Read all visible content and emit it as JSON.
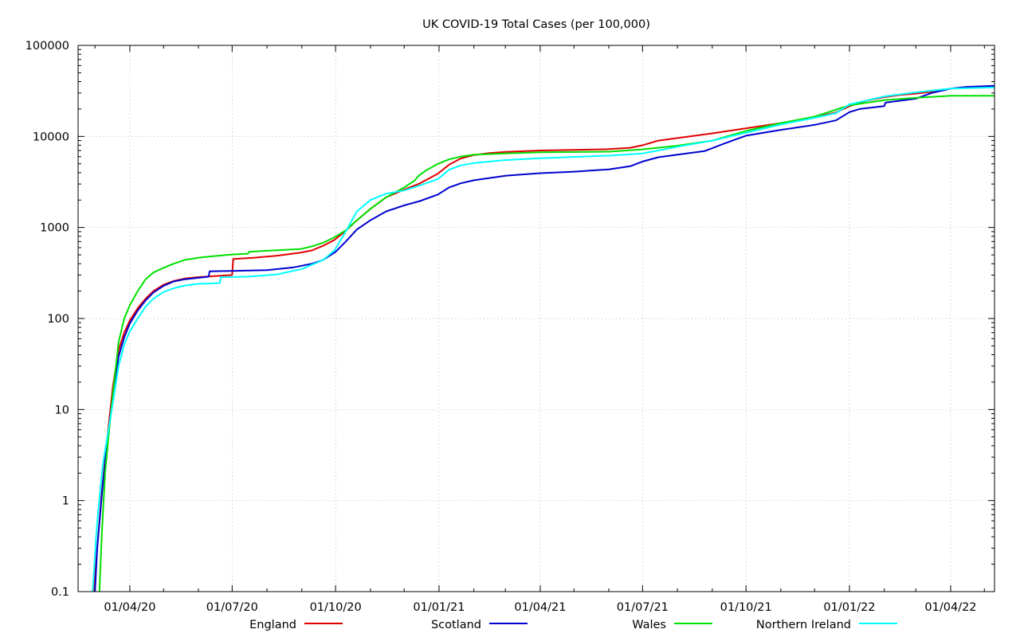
{
  "chart_data": {
    "type": "line",
    "title": "UK COVID-19 Total Cases (per 100,000)",
    "xlabel": "",
    "ylabel": "",
    "yscale": "log",
    "ylim": [
      0.1,
      100000
    ],
    "xlim": [
      "2020-02-15",
      "2022-05-10"
    ],
    "grid": true,
    "legend_position": "bottom",
    "y_ticks": [
      {
        "value": 0.1,
        "label": "0.1"
      },
      {
        "value": 1,
        "label": "1"
      },
      {
        "value": 10,
        "label": "10"
      },
      {
        "value": 100,
        "label": "100"
      },
      {
        "value": 1000,
        "label": "1000"
      },
      {
        "value": 10000,
        "label": "10000"
      },
      {
        "value": 100000,
        "label": "100000"
      }
    ],
    "x_ticks": [
      {
        "date": "2020-04-01",
        "label": "01/04/20"
      },
      {
        "date": "2020-07-01",
        "label": "01/07/20"
      },
      {
        "date": "2020-10-01",
        "label": "01/10/20"
      },
      {
        "date": "2021-01-01",
        "label": "01/01/21"
      },
      {
        "date": "2021-04-01",
        "label": "01/04/21"
      },
      {
        "date": "2021-07-01",
        "label": "01/07/21"
      },
      {
        "date": "2021-10-01",
        "label": "01/10/21"
      },
      {
        "date": "2022-01-01",
        "label": "01/01/22"
      },
      {
        "date": "2022-04-01",
        "label": "01/04/22"
      }
    ],
    "series": [
      {
        "name": "England",
        "color": "#e00000",
        "points": [
          [
            "2020-02-29",
            0.1
          ],
          [
            "2020-03-03",
            0.3
          ],
          [
            "2020-03-07",
            1.2
          ],
          [
            "2020-03-12",
            5
          ],
          [
            "2020-03-17",
            18
          ],
          [
            "2020-03-22",
            45
          ],
          [
            "2020-03-27",
            70
          ],
          [
            "2020-04-01",
            95
          ],
          [
            "2020-04-08",
            130
          ],
          [
            "2020-04-15",
            165
          ],
          [
            "2020-04-22",
            200
          ],
          [
            "2020-05-01",
            235
          ],
          [
            "2020-05-10",
            258
          ],
          [
            "2020-05-20",
            275
          ],
          [
            "2020-06-01",
            285
          ],
          [
            "2020-06-15",
            292
          ],
          [
            "2020-07-01",
            300
          ],
          [
            "2020-07-02",
            450
          ],
          [
            "2020-07-20",
            465
          ],
          [
            "2020-08-10",
            490
          ],
          [
            "2020-08-31",
            530
          ],
          [
            "2020-09-10",
            560
          ],
          [
            "2020-09-20",
            630
          ],
          [
            "2020-09-30",
            730
          ],
          [
            "2020-10-10",
            920
          ],
          [
            "2020-10-20",
            1200
          ],
          [
            "2020-11-01",
            1600
          ],
          [
            "2020-11-15",
            2150
          ],
          [
            "2020-12-01",
            2600
          ],
          [
            "2020-12-15",
            3050
          ],
          [
            "2020-12-31",
            3900
          ],
          [
            "2021-01-10",
            4900
          ],
          [
            "2021-01-20",
            5700
          ],
          [
            "2021-02-01",
            6250
          ],
          [
            "2021-02-15",
            6550
          ],
          [
            "2021-03-01",
            6750
          ],
          [
            "2021-04-01",
            7000
          ],
          [
            "2021-05-01",
            7100
          ],
          [
            "2021-06-01",
            7250
          ],
          [
            "2021-06-20",
            7500
          ],
          [
            "2021-07-01",
            8000
          ],
          [
            "2021-07-15",
            9000
          ],
          [
            "2021-08-01",
            9600
          ],
          [
            "2021-08-15",
            10100
          ],
          [
            "2021-09-01",
            10800
          ],
          [
            "2021-10-01",
            12300
          ],
          [
            "2021-11-01",
            14000
          ],
          [
            "2021-12-01",
            16300
          ],
          [
            "2021-12-20",
            18300
          ],
          [
            "2022-01-01",
            21500
          ],
          [
            "2022-01-15",
            24500
          ],
          [
            "2022-02-01",
            27000
          ],
          [
            "2022-02-15",
            28500
          ],
          [
            "2022-03-01",
            29500
          ],
          [
            "2022-03-15",
            31000
          ],
          [
            "2022-04-01",
            33500
          ],
          [
            "2022-04-15",
            34500
          ],
          [
            "2022-05-10",
            35000
          ]
        ]
      },
      {
        "name": "Scotland",
        "color": "#0000d0",
        "points": [
          [
            "2020-03-01",
            0.1
          ],
          [
            "2020-03-03",
            0.3
          ],
          [
            "2020-03-08",
            1.5
          ],
          [
            "2020-03-12",
            4.5
          ],
          [
            "2020-03-17",
            14
          ],
          [
            "2020-03-22",
            38
          ],
          [
            "2020-03-27",
            62
          ],
          [
            "2020-04-01",
            88
          ],
          [
            "2020-04-08",
            122
          ],
          [
            "2020-04-15",
            158
          ],
          [
            "2020-04-22",
            193
          ],
          [
            "2020-05-01",
            228
          ],
          [
            "2020-05-10",
            255
          ],
          [
            "2020-05-20",
            270
          ],
          [
            "2020-06-01",
            280
          ],
          [
            "2020-06-10",
            288
          ],
          [
            "2020-06-11",
            330
          ],
          [
            "2020-07-01",
            333
          ],
          [
            "2020-08-01",
            340
          ],
          [
            "2020-08-25",
            365
          ],
          [
            "2020-09-10",
            400
          ],
          [
            "2020-09-20",
            440
          ],
          [
            "2020-10-01",
            540
          ],
          [
            "2020-10-10",
            700
          ],
          [
            "2020-10-20",
            950
          ],
          [
            "2020-11-01",
            1200
          ],
          [
            "2020-11-15",
            1500
          ],
          [
            "2020-12-01",
            1750
          ],
          [
            "2020-12-15",
            1950
          ],
          [
            "2020-12-31",
            2300
          ],
          [
            "2021-01-10",
            2750
          ],
          [
            "2021-01-20",
            3050
          ],
          [
            "2021-02-01",
            3300
          ],
          [
            "2021-03-01",
            3700
          ],
          [
            "2021-04-01",
            3950
          ],
          [
            "2021-05-01",
            4100
          ],
          [
            "2021-06-01",
            4350
          ],
          [
            "2021-06-20",
            4700
          ],
          [
            "2021-07-01",
            5300
          ],
          [
            "2021-07-15",
            5900
          ],
          [
            "2021-08-01",
            6300
          ],
          [
            "2021-08-25",
            6900
          ],
          [
            "2021-09-10",
            8200
          ],
          [
            "2021-09-25",
            9600
          ],
          [
            "2021-10-01",
            10200
          ],
          [
            "2021-11-01",
            11800
          ],
          [
            "2021-12-01",
            13400
          ],
          [
            "2021-12-20",
            15000
          ],
          [
            "2022-01-01",
            18500
          ],
          [
            "2022-01-10",
            20000
          ],
          [
            "2022-02-01",
            21500
          ],
          [
            "2022-02-02",
            23500
          ],
          [
            "2022-03-01",
            26000
          ],
          [
            "2022-03-15",
            30000
          ],
          [
            "2022-04-01",
            33500
          ],
          [
            "2022-04-15",
            35000
          ],
          [
            "2022-05-10",
            36000
          ]
        ]
      },
      {
        "name": "Wales",
        "color": "#00e000",
        "points": [
          [
            "2020-03-05",
            0.1
          ],
          [
            "2020-03-07",
            0.4
          ],
          [
            "2020-03-10",
            2
          ],
          [
            "2020-03-13",
            5
          ],
          [
            "2020-03-17",
            15
          ],
          [
            "2020-03-22",
            55
          ],
          [
            "2020-03-27",
            100
          ],
          [
            "2020-04-01",
            140
          ],
          [
            "2020-04-08",
            200
          ],
          [
            "2020-04-15",
            270
          ],
          [
            "2020-04-22",
            320
          ],
          [
            "2020-05-01",
            360
          ],
          [
            "2020-05-10",
            400
          ],
          [
            "2020-05-20",
            440
          ],
          [
            "2020-06-01",
            465
          ],
          [
            "2020-06-15",
            485
          ],
          [
            "2020-07-01",
            505
          ],
          [
            "2020-07-15",
            515
          ],
          [
            "2020-07-16",
            540
          ],
          [
            "2020-08-01",
            555
          ],
          [
            "2020-08-31",
            580
          ],
          [
            "2020-09-10",
            620
          ],
          [
            "2020-09-20",
            680
          ],
          [
            "2020-09-30",
            780
          ],
          [
            "2020-10-10",
            930
          ],
          [
            "2020-10-20",
            1200
          ],
          [
            "2020-11-01",
            1600
          ],
          [
            "2020-11-15",
            2150
          ],
          [
            "2020-12-01",
            2750
          ],
          [
            "2020-12-10",
            3250
          ],
          [
            "2020-12-14",
            3700
          ],
          [
            "2020-12-20",
            4200
          ],
          [
            "2020-12-31",
            5000
          ],
          [
            "2021-01-10",
            5600
          ],
          [
            "2021-01-20",
            6000
          ],
          [
            "2021-02-01",
            6300
          ],
          [
            "2021-03-01",
            6500
          ],
          [
            "2021-04-01",
            6700
          ],
          [
            "2021-06-01",
            6800
          ],
          [
            "2021-07-01",
            7200
          ],
          [
            "2021-08-01",
            7900
          ],
          [
            "2021-09-01",
            9000
          ],
          [
            "2021-10-01",
            11500
          ],
          [
            "2021-11-01",
            14000
          ],
          [
            "2021-12-01",
            16500
          ],
          [
            "2022-01-01",
            22000
          ],
          [
            "2022-02-01",
            25000
          ],
          [
            "2022-03-01",
            26500
          ],
          [
            "2022-04-01",
            28000
          ],
          [
            "2022-05-10",
            28000
          ]
        ]
      },
      {
        "name": "Northern Ireland",
        "color": "#00ffff",
        "points": [
          [
            "2020-02-28",
            0.1
          ],
          [
            "2020-03-02",
            0.4
          ],
          [
            "2020-03-04",
            0.8
          ],
          [
            "2020-03-08",
            2.5
          ],
          [
            "2020-03-12",
            5
          ],
          [
            "2020-03-17",
            12
          ],
          [
            "2020-03-22",
            30
          ],
          [
            "2020-03-27",
            52
          ],
          [
            "2020-04-01",
            72
          ],
          [
            "2020-04-08",
            100
          ],
          [
            "2020-04-15",
            135
          ],
          [
            "2020-04-22",
            165
          ],
          [
            "2020-05-01",
            195
          ],
          [
            "2020-05-10",
            215
          ],
          [
            "2020-05-20",
            230
          ],
          [
            "2020-06-01",
            240
          ],
          [
            "2020-06-20",
            245
          ],
          [
            "2020-06-21",
            285
          ],
          [
            "2020-07-15",
            288
          ],
          [
            "2020-08-10",
            305
          ],
          [
            "2020-09-01",
            350
          ],
          [
            "2020-09-20",
            440
          ],
          [
            "2020-09-30",
            560
          ],
          [
            "2020-10-10",
            900
          ],
          [
            "2020-10-20",
            1500
          ],
          [
            "2020-11-01",
            2000
          ],
          [
            "2020-11-15",
            2350
          ],
          [
            "2020-12-01",
            2550
          ],
          [
            "2020-12-15",
            2900
          ],
          [
            "2020-12-31",
            3400
          ],
          [
            "2021-01-10",
            4300
          ],
          [
            "2021-01-20",
            4800
          ],
          [
            "2021-02-01",
            5100
          ],
          [
            "2021-03-01",
            5500
          ],
          [
            "2021-04-01",
            5750
          ],
          [
            "2021-05-01",
            5950
          ],
          [
            "2021-06-01",
            6150
          ],
          [
            "2021-07-01",
            6500
          ],
          [
            "2021-07-20",
            7200
          ],
          [
            "2021-08-01",
            7700
          ],
          [
            "2021-09-01",
            9000
          ],
          [
            "2021-10-01",
            11000
          ],
          [
            "2021-11-01",
            13500
          ],
          [
            "2021-12-01",
            16000
          ],
          [
            "2021-12-20",
            18000
          ],
          [
            "2022-01-01",
            22500
          ],
          [
            "2022-02-01",
            27500
          ],
          [
            "2022-03-01",
            30500
          ],
          [
            "2022-04-01",
            33500
          ],
          [
            "2022-05-10",
            34500
          ]
        ]
      }
    ]
  }
}
